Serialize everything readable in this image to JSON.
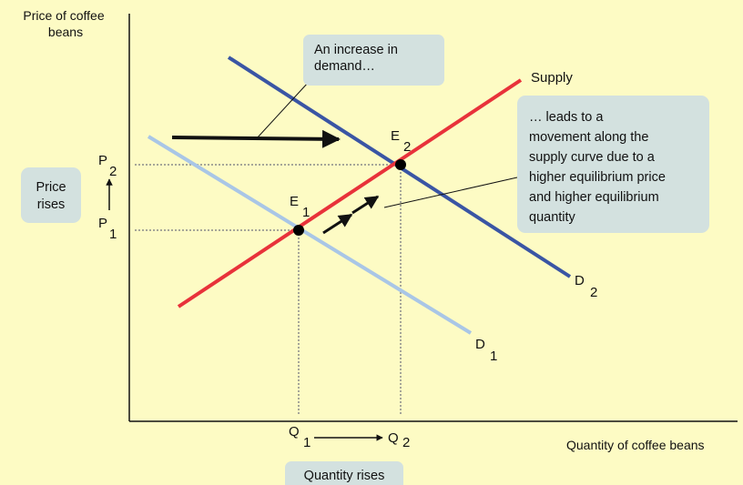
{
  "axes": {
    "y_label_line1": "Price of coffee",
    "y_label_line2": "beans",
    "x_label": "Quantity of coffee beans"
  },
  "curves": {
    "supply": "Supply",
    "d1_main": "D",
    "d1_sub": "1",
    "d2_main": "D",
    "d2_sub": "2"
  },
  "points": {
    "e1_main": "E",
    "e1_sub": "1",
    "e2_main": "E",
    "e2_sub": "2",
    "p1_main": "P",
    "p1_sub": "1",
    "p2_main": "P",
    "p2_sub": "2",
    "q1_main": "Q",
    "q1_sub": "1",
    "q2_main": "Q",
    "q2_sub": "2"
  },
  "callouts": {
    "demand_line1": "An increase in",
    "demand_line2": "demand…",
    "movement_line1": "… leads to a",
    "movement_line2": "movement along the",
    "movement_line3": "supply curve due to a",
    "movement_line4": "higher equilibrium price",
    "movement_line5": "and higher equilibrium",
    "movement_line6": "quantity",
    "price_line1": "Price",
    "price_line2": "rises",
    "quantity": "Quantity rises"
  },
  "colors": {
    "background": "#fdfbc4",
    "supply": "#e8323a",
    "demand_1": "#a9c6e6",
    "demand_2": "#3a55a4",
    "callout_box": "#d3e1df",
    "guide": "#8a8a8a"
  }
}
